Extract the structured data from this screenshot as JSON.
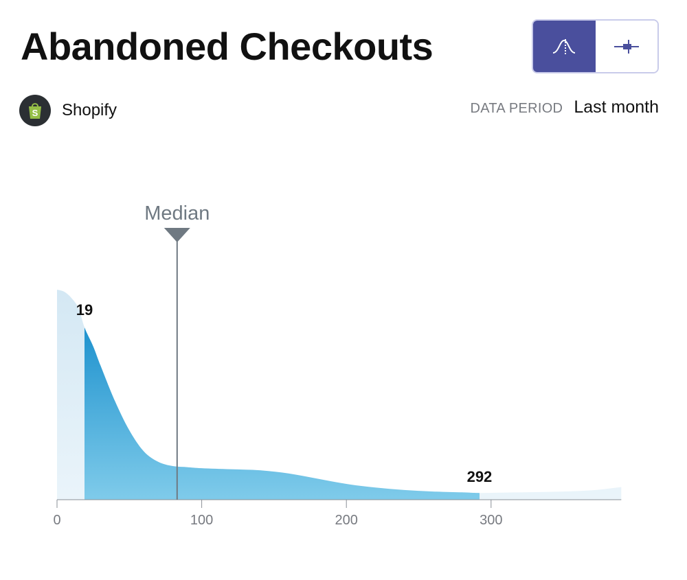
{
  "header": {
    "title": "Abandoned Checkouts",
    "view_toggle": [
      {
        "icon": "distribution-curve-icon",
        "active": true
      },
      {
        "icon": "range-bar-icon",
        "active": false
      }
    ]
  },
  "source": {
    "name": "Shopify",
    "icon": "shopify-bag-icon"
  },
  "period": {
    "label": "DATA PERIOD",
    "value": "Last month"
  },
  "colors": {
    "accent": "#4a4f9d",
    "highlight_top": "#0a86c8",
    "highlight_bottom": "#7fcbea",
    "faded": "#dcecf6",
    "median": "#6f7982"
  },
  "chart_data": {
    "type": "area",
    "title": "Abandoned Checkouts",
    "x_ticks": [
      "0",
      "100",
      "200",
      "300"
    ],
    "xlim": [
      0,
      390
    ],
    "ylim": [
      0,
      1
    ],
    "curve": {
      "x": [
        0,
        5,
        10,
        15,
        19,
        25,
        30,
        40,
        50,
        60,
        70,
        80,
        90,
        100,
        120,
        140,
        160,
        180,
        200,
        220,
        240,
        260,
        280,
        292,
        310,
        330,
        350,
        370,
        390
      ],
      "y": [
        1.0,
        0.99,
        0.96,
        0.91,
        0.82,
        0.73,
        0.64,
        0.47,
        0.33,
        0.23,
        0.18,
        0.16,
        0.155,
        0.15,
        0.145,
        0.14,
        0.125,
        0.1,
        0.075,
        0.058,
        0.046,
        0.039,
        0.035,
        0.032,
        0.034,
        0.036,
        0.039,
        0.045,
        0.06
      ]
    },
    "range": {
      "low": 19,
      "high": 292,
      "low_label": "19",
      "high_label": "292"
    },
    "median": {
      "value": 83,
      "label": "Median"
    }
  }
}
